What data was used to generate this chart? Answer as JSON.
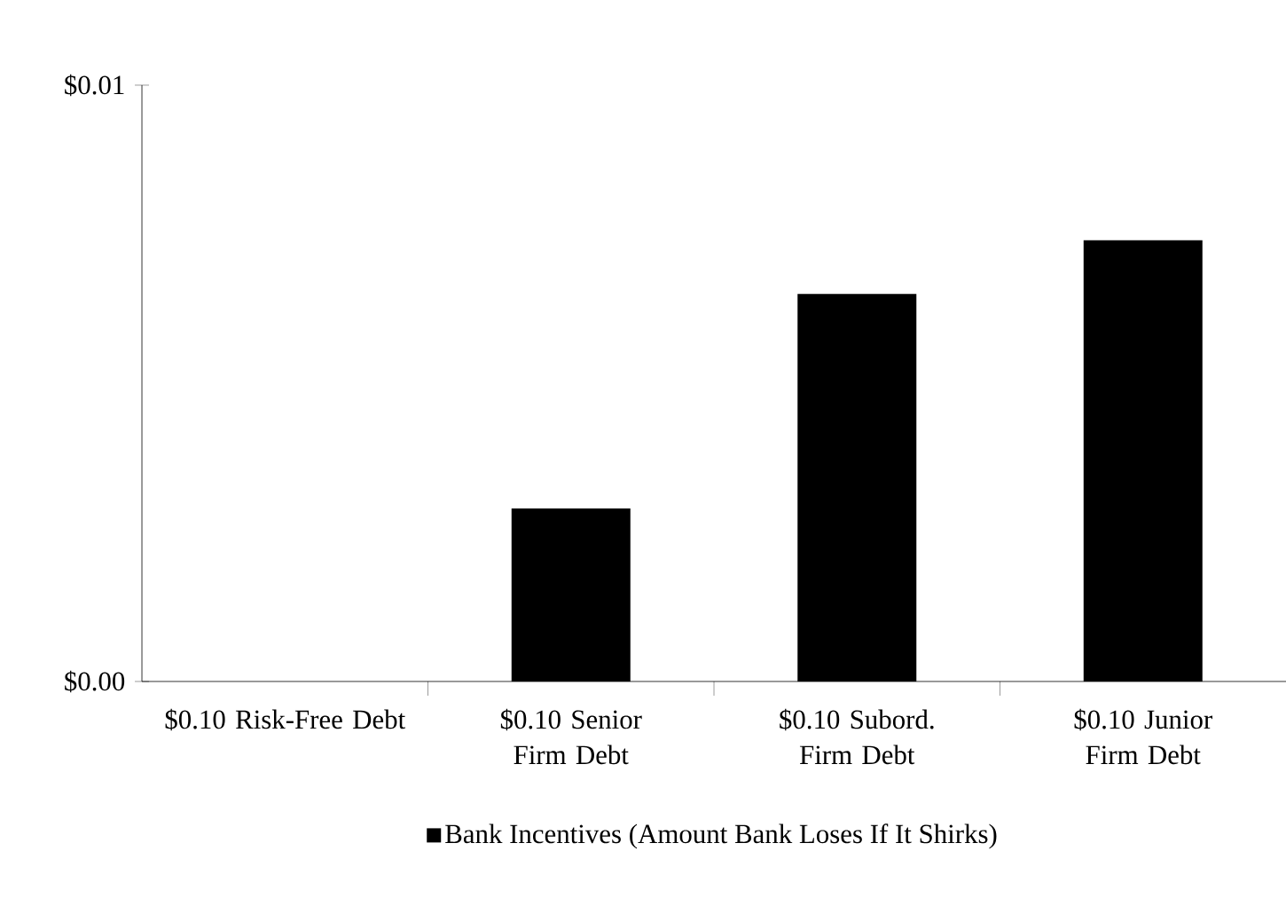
{
  "chart_data": {
    "type": "bar",
    "categories": [
      "$0.10 Risk-Free Debt",
      "$0.10 Senior Firm Debt",
      "$0.10 Subord. Firm Debt",
      "$0.10 Junior Firm Debt"
    ],
    "series": [
      {
        "name": "Bank Incentives (Amount Bank Loses If It Shirks)",
        "color": "#000000",
        "values": [
          0,
          0.0029,
          0.0065,
          0.0074
        ]
      }
    ],
    "ylim": [
      0,
      0.01
    ],
    "yticks": [
      {
        "value": 0,
        "label": "$0.00"
      },
      {
        "value": 0.01,
        "label": "$0.01"
      }
    ],
    "legend": "bottom"
  }
}
